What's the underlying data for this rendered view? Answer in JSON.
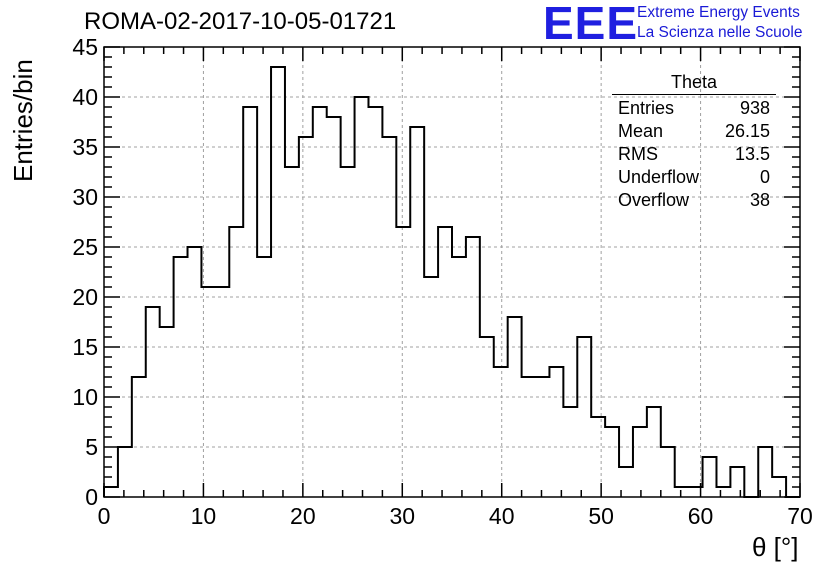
{
  "chart_data": {
    "type": "histogram",
    "title": "ROMA-02-2017-10-05-01721",
    "xlabel": "θ [°]",
    "ylabel": "Entries/bin",
    "xlim": [
      0,
      70
    ],
    "ylim": [
      0,
      45
    ],
    "bin_width": 1.4,
    "x_ticks": [
      0,
      10,
      20,
      30,
      40,
      50,
      60,
      70
    ],
    "y_ticks": [
      0,
      5,
      10,
      15,
      20,
      25,
      30,
      35,
      40,
      45
    ],
    "grid": true,
    "values": [
      1,
      5,
      12,
      19,
      17,
      24,
      25,
      21,
      21,
      27,
      39,
      24,
      43,
      33,
      36,
      39,
      38,
      33,
      40,
      39,
      36,
      27,
      37,
      22,
      27,
      24,
      26,
      16,
      13,
      18,
      12,
      12,
      13,
      9,
      16,
      8,
      7,
      3,
      7,
      9,
      5,
      1,
      1,
      4,
      1,
      3,
      0,
      5,
      2,
      0
    ],
    "stats": {
      "name": "Theta",
      "rows": [
        {
          "label": "Entries",
          "value": "938"
        },
        {
          "label": "Mean",
          "value": "26.15"
        },
        {
          "label": "RMS",
          "value": "13.5"
        },
        {
          "label": "Underflow",
          "value": "0"
        },
        {
          "label": "Overflow",
          "value": "38"
        }
      ]
    }
  },
  "logo": {
    "mark": "EEE",
    "line1": "Extreme Energy Events",
    "line2": "La Scienza nelle Scuole"
  },
  "colors": {
    "logo": "#1f1fe0",
    "line": "#000000",
    "grid": "#a0a0a0"
  }
}
